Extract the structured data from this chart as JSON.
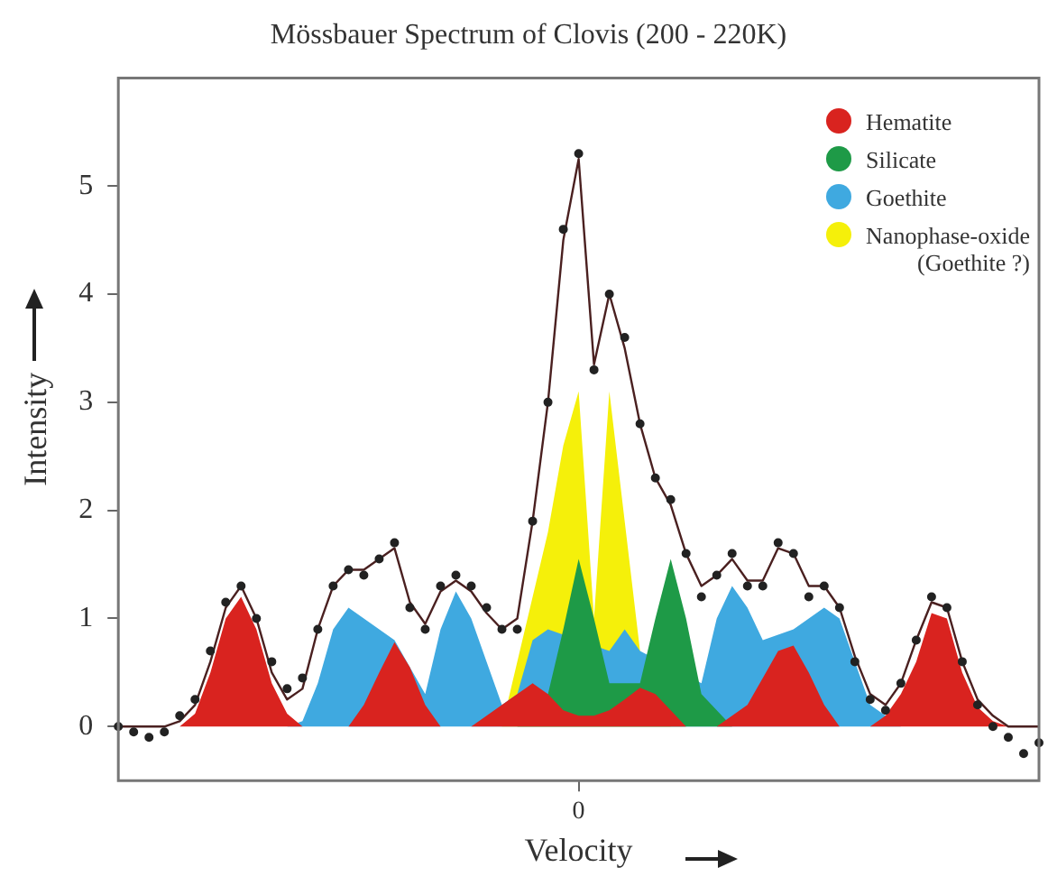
{
  "chart_data": {
    "type": "area",
    "title": "Mössbauer Spectrum of Clovis (200 - 220K)",
    "xlabel": "Velocity",
    "ylabel": "Intensity",
    "categories": [
      null,
      null,
      null,
      null,
      null,
      null,
      null,
      null,
      null,
      null,
      null,
      null,
      null,
      null,
      null,
      null,
      null,
      null,
      null,
      null,
      null,
      null,
      null,
      null,
      null,
      null,
      null,
      null,
      null,
      null,
      "0",
      null,
      null,
      null,
      null,
      null,
      null,
      null,
      null,
      null,
      null,
      null,
      null,
      null,
      null,
      null,
      null,
      null,
      null,
      null,
      null,
      null,
      null,
      null,
      null,
      null,
      null,
      null,
      null,
      null,
      null
    ],
    "ylim": [
      -0.5,
      6
    ],
    "yticks": [
      0,
      1,
      2,
      3,
      4,
      5
    ],
    "grid": false,
    "legend": "top right",
    "line_style": "solid",
    "series": [
      {
        "name": "Nanophase-oxide\n(Goethite ?)",
        "color": "#f5f00a",
        "values": [
          0,
          0,
          0,
          0,
          0,
          0,
          0,
          0,
          0,
          0,
          0,
          0,
          0,
          0,
          0,
          0,
          0,
          0,
          0,
          0,
          0,
          0,
          0,
          0,
          0,
          0,
          null,
          null,
          1.8,
          2.6,
          3.1,
          1.0,
          3.1,
          null,
          0.7,
          null,
          0,
          0,
          0,
          0,
          0,
          0,
          0,
          0,
          0,
          0,
          0,
          0,
          0,
          0,
          0,
          0,
          0,
          0,
          0,
          0,
          0,
          0,
          0,
          0,
          0
        ]
      },
      {
        "name": "Goethite",
        "color": "#3fa9e0",
        "values": [
          0,
          0,
          0,
          0,
          0,
          0,
          0,
          0,
          0,
          0,
          0,
          0,
          0.05,
          0.4,
          0.9,
          1.1,
          1.0,
          0.9,
          0.8,
          null,
          0.3,
          0.9,
          1.25,
          1.0,
          0.6,
          0.2,
          0.3,
          0.8,
          0.9,
          null,
          null,
          null,
          0.7,
          0.9,
          0.7,
          null,
          null,
          null,
          0.4,
          1.0,
          1.3,
          1.1,
          0.8,
          0.85,
          0.9,
          1.0,
          1.1,
          1.0,
          0.6,
          0.2,
          null,
          0,
          0,
          0,
          0,
          0,
          0,
          0,
          0,
          0,
          0
        ]
      },
      {
        "name": "Silicate",
        "color": "#1e9a47",
        "values": [
          0,
          0,
          0,
          0,
          0,
          0,
          0,
          0,
          0,
          0,
          0,
          0,
          0,
          0,
          0,
          0,
          0,
          0,
          0,
          0,
          0,
          0,
          0,
          0,
          0,
          0,
          0,
          null,
          0.3,
          0.9,
          1.55,
          1.0,
          0.4,
          null,
          0.4,
          1.0,
          1.55,
          1.0,
          0.3,
          null,
          0,
          0,
          0,
          0,
          0,
          0,
          0,
          0,
          0,
          0,
          0,
          0,
          0,
          0,
          0,
          0,
          0,
          0,
          0,
          0,
          0
        ]
      },
      {
        "name": "Hematite",
        "color": "#d9231f",
        "values": [
          0,
          0,
          0,
          0,
          0,
          0.12,
          0.5,
          1.0,
          1.2,
          0.9,
          0.4,
          0.12,
          0,
          0,
          0,
          0,
          0.2,
          0.5,
          0.78,
          0.55,
          0.2,
          0,
          0,
          0,
          0.1,
          0.2,
          0.3,
          0.4,
          0.3,
          0.15,
          0.1,
          0.1,
          0.15,
          0.25,
          0.36,
          0.3,
          0.15,
          0,
          0,
          0,
          0.1,
          0.2,
          0.45,
          0.7,
          0.75,
          0.5,
          0.2,
          0,
          0,
          0,
          0.1,
          0.3,
          0.6,
          1.05,
          1.0,
          0.5,
          0.18,
          0.05,
          0,
          0,
          0
        ]
      },
      {
        "type": "line",
        "color": "#4a2020",
        "values": [
          0.0,
          0.0,
          0.0,
          0.0,
          0.05,
          0.2,
          0.6,
          1.1,
          1.3,
          1.0,
          0.5,
          0.25,
          0.35,
          0.9,
          1.3,
          1.45,
          1.45,
          1.55,
          1.65,
          1.15,
          0.95,
          1.25,
          1.35,
          1.25,
          1.05,
          0.9,
          1.0,
          1.9,
          3.0,
          4.5,
          5.25,
          3.35,
          4.0,
          3.5,
          2.8,
          2.3,
          2.05,
          1.6,
          1.3,
          1.4,
          1.55,
          1.35,
          1.35,
          1.65,
          1.6,
          1.3,
          1.3,
          1.1,
          0.65,
          0.3,
          0.2,
          0.4,
          0.8,
          1.15,
          1.1,
          0.6,
          0.25,
          0.1,
          0.0,
          0.0,
          0.0
        ]
      },
      {
        "type": "scatter",
        "marker": "circle",
        "color": "#222222",
        "values": [
          0.0,
          -0.05,
          -0.1,
          -0.05,
          0.1,
          0.25,
          0.7,
          1.15,
          1.3,
          1.0,
          0.6,
          0.35,
          0.45,
          0.9,
          1.3,
          1.45,
          1.4,
          1.55,
          1.7,
          1.1,
          0.9,
          1.3,
          1.4,
          1.3,
          1.1,
          0.9,
          0.9,
          1.9,
          3.0,
          4.6,
          5.3,
          3.3,
          4.0,
          3.6,
          2.8,
          2.3,
          2.1,
          1.6,
          1.2,
          1.4,
          1.6,
          1.3,
          1.3,
          1.7,
          1.6,
          1.2,
          1.3,
          1.1,
          0.6,
          0.25,
          0.15,
          0.4,
          0.8,
          1.2,
          1.1,
          0.6,
          0.2,
          0.0,
          -0.1,
          -0.25,
          -0.15
        ]
      }
    ]
  }
}
